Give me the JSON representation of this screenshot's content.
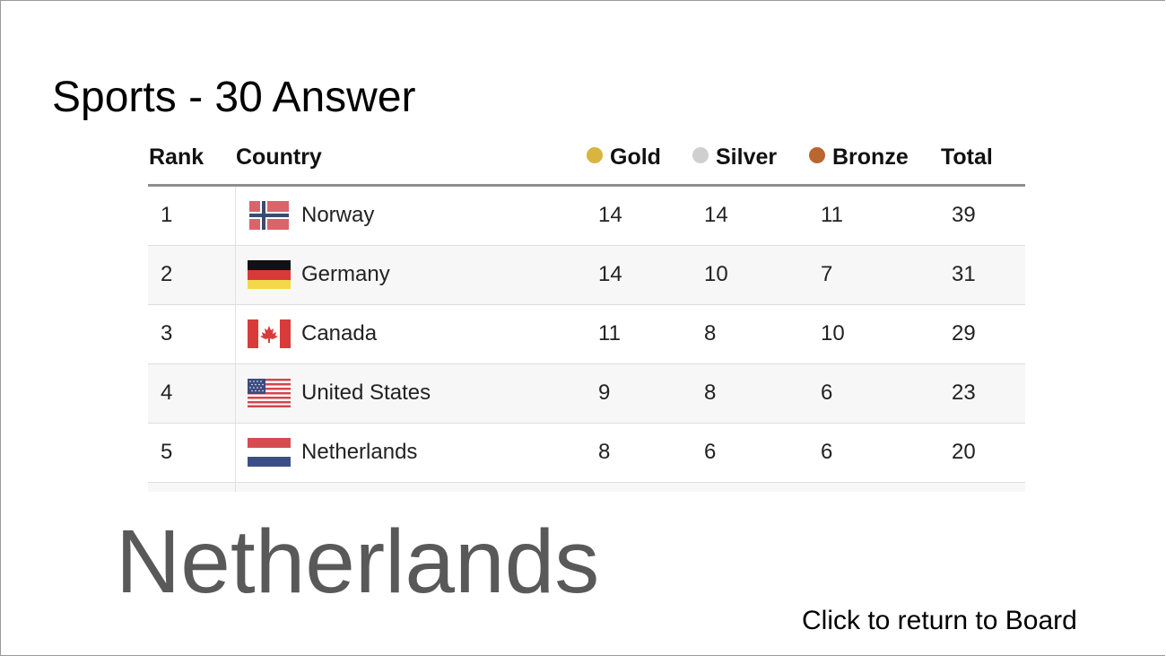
{
  "slide": {
    "title": "Sports - 30 Answer",
    "answer": "Netherlands",
    "return_link": "Click to return to Board"
  },
  "colors": {
    "gold": "#d8b53f",
    "silver": "#cfcfcf",
    "bronze": "#b8672f"
  },
  "table": {
    "headers": {
      "rank": "Rank",
      "country": "Country",
      "gold": "Gold",
      "silver": "Silver",
      "bronze": "Bronze",
      "total": "Total"
    },
    "rows": [
      {
        "rank": "1",
        "country": "Norway",
        "flag": "norway-flag-icon",
        "gold": "14",
        "silver": "14",
        "bronze": "11",
        "total": "39"
      },
      {
        "rank": "2",
        "country": "Germany",
        "flag": "germany-flag-icon",
        "gold": "14",
        "silver": "10",
        "bronze": "7",
        "total": "31"
      },
      {
        "rank": "3",
        "country": "Canada",
        "flag": "canada-flag-icon",
        "gold": "11",
        "silver": "8",
        "bronze": "10",
        "total": "29"
      },
      {
        "rank": "4",
        "country": "United States",
        "flag": "united-states-flag-icon",
        "gold": "9",
        "silver": "8",
        "bronze": "6",
        "total": "23"
      },
      {
        "rank": "5",
        "country": "Netherlands",
        "flag": "netherlands-flag-icon",
        "gold": "8",
        "silver": "6",
        "bronze": "6",
        "total": "20"
      }
    ]
  }
}
